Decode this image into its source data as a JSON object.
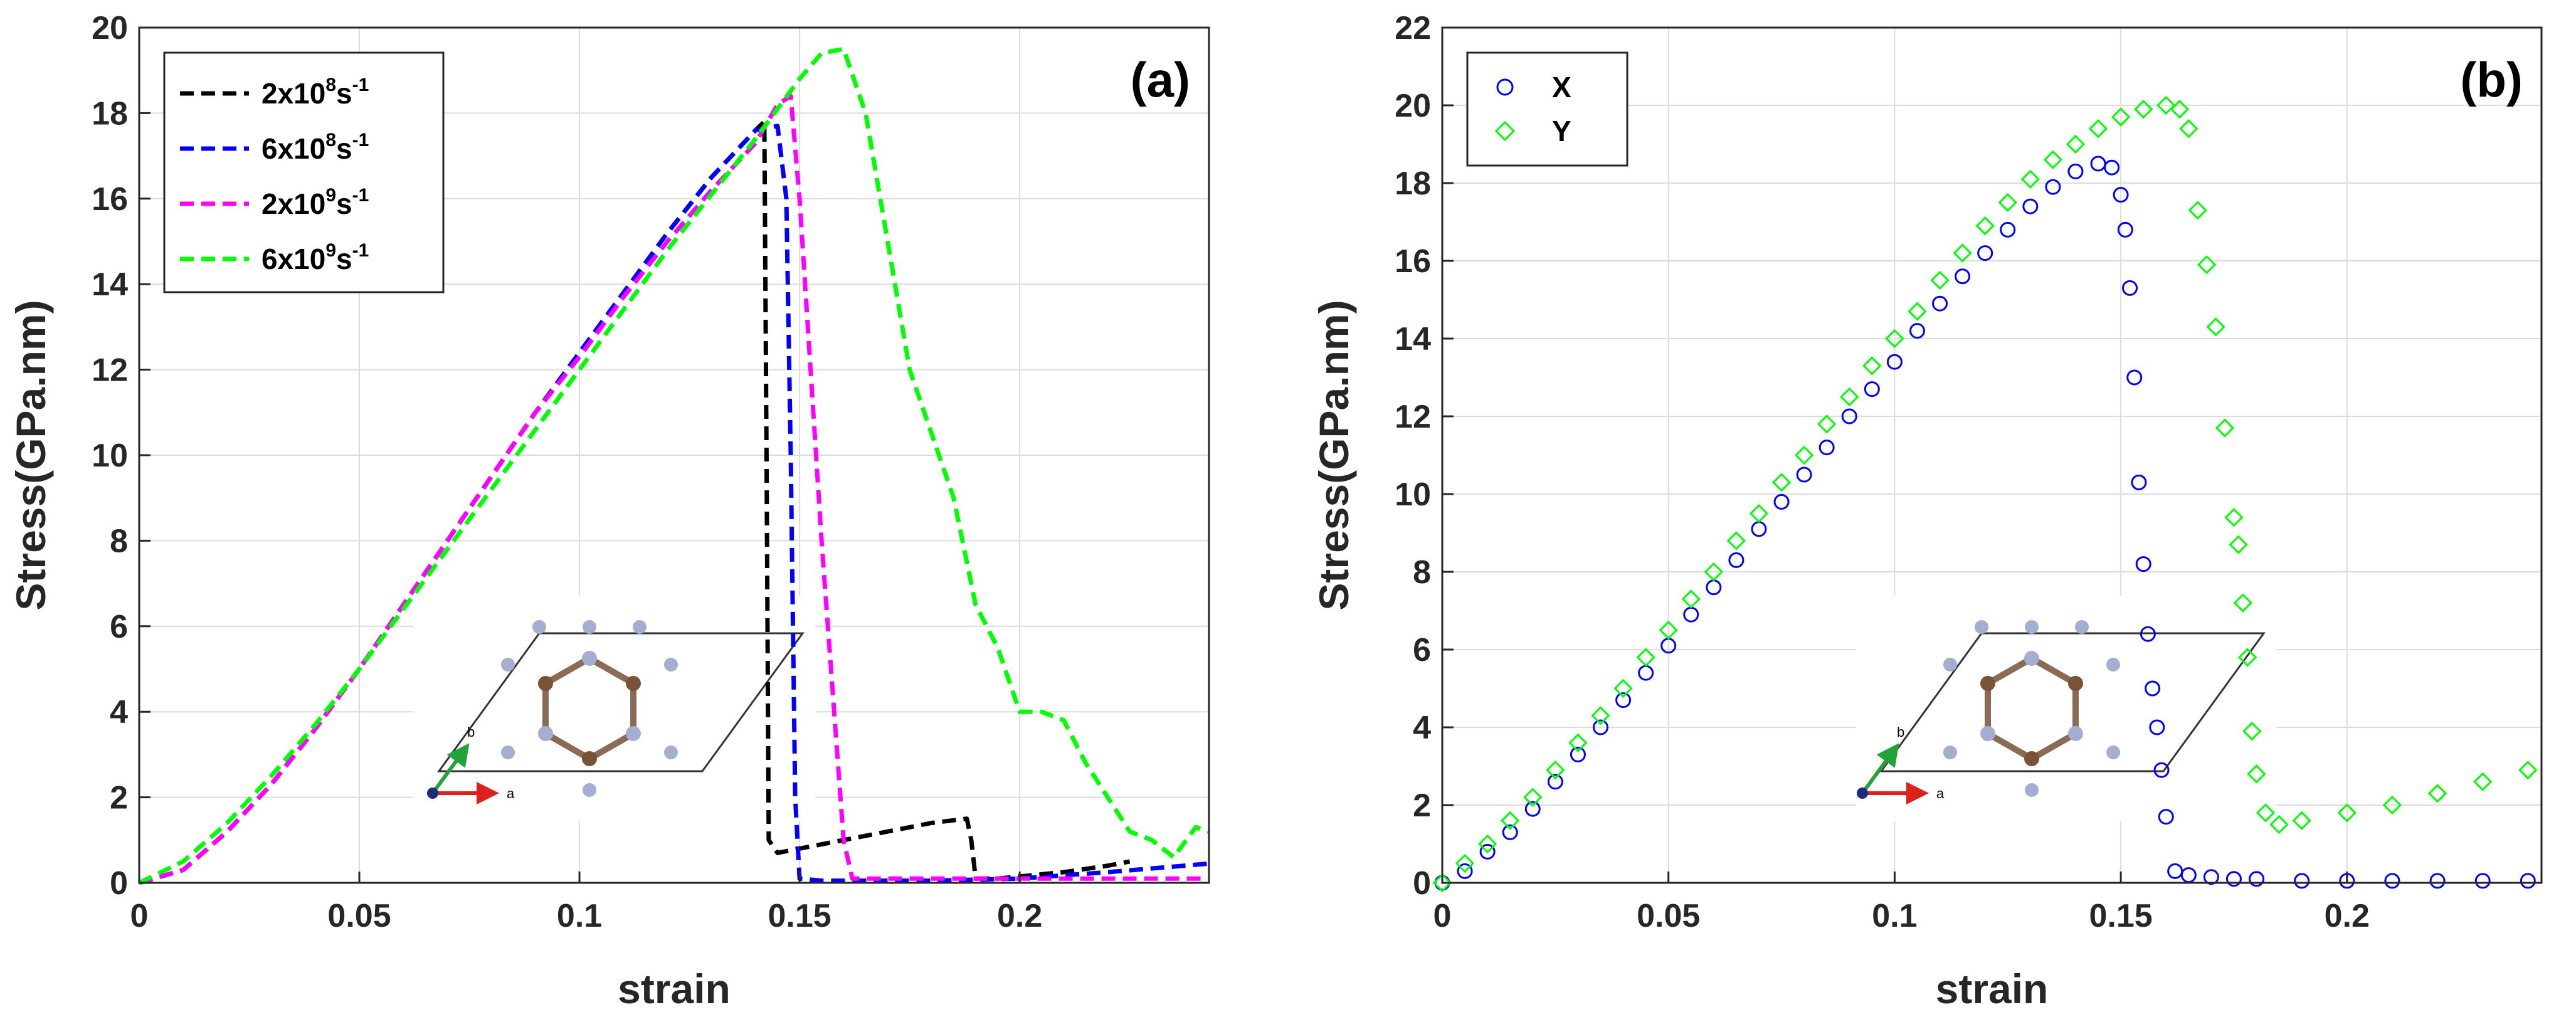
{
  "chart_data": [
    {
      "panel_label": "(a)",
      "type": "line",
      "xlabel": "strain",
      "ylabel": "Stress(GPa.nm)",
      "xlim": [
        0,
        0.243
      ],
      "ylim": [
        0,
        20
      ],
      "xticks": [
        0,
        0.05,
        0.1,
        0.15,
        0.2
      ],
      "xtick_labels": [
        "0",
        "0.05",
        "0.1",
        "0.15",
        "0.2"
      ],
      "yticks": [
        0,
        2,
        4,
        6,
        8,
        10,
        12,
        14,
        16,
        18,
        20
      ],
      "ytick_labels": [
        "0",
        "2",
        "4",
        "6",
        "8",
        "10",
        "12",
        "14",
        "16",
        "18",
        "20"
      ],
      "grid": true,
      "legend_position": "top-left",
      "series": [
        {
          "name": "2x10^8 s^-1",
          "legend": {
            "base": "2x10",
            "exp": "8",
            "unit": "s",
            "unit_exp": "-1"
          },
          "color": "#000000",
          "x": [
            0,
            0.01,
            0.02,
            0.03,
            0.04,
            0.05,
            0.06,
            0.07,
            0.08,
            0.09,
            0.1,
            0.11,
            0.12,
            0.13,
            0.14,
            0.142,
            0.1425,
            0.143,
            0.145,
            0.15,
            0.16,
            0.17,
            0.18,
            0.188,
            0.189,
            0.19,
            0.195,
            0.2,
            0.21,
            0.22,
            0.225
          ],
          "y": [
            0,
            0.3,
            1.2,
            2.3,
            3.6,
            5.0,
            6.5,
            8.0,
            9.5,
            11.0,
            12.4,
            13.8,
            15.2,
            16.5,
            17.6,
            17.8,
            10.0,
            1.0,
            0.7,
            0.8,
            1.0,
            1.2,
            1.4,
            1.5,
            1.0,
            0.1,
            0.1,
            0.15,
            0.25,
            0.4,
            0.5
          ]
        },
        {
          "name": "6x10^8 s^-1",
          "legend": {
            "base": "6x10",
            "exp": "8",
            "unit": "s",
            "unit_exp": "-1"
          },
          "color": "#0000ff",
          "x": [
            0,
            0.01,
            0.02,
            0.03,
            0.04,
            0.05,
            0.06,
            0.07,
            0.08,
            0.09,
            0.1,
            0.11,
            0.12,
            0.13,
            0.14,
            0.145,
            0.147,
            0.148,
            0.149,
            0.15,
            0.155,
            0.16,
            0.18,
            0.2,
            0.22,
            0.243
          ],
          "y": [
            0,
            0.3,
            1.2,
            2.3,
            3.6,
            5.0,
            6.5,
            8.0,
            9.5,
            11.0,
            12.4,
            13.8,
            15.2,
            16.5,
            17.6,
            17.7,
            16.0,
            10.0,
            2.0,
            0.1,
            0.05,
            0.05,
            0.05,
            0.1,
            0.25,
            0.45
          ]
        },
        {
          "name": "2x10^9 s^-1",
          "legend": {
            "base": "2x10",
            "exp": "9",
            "unit": "s",
            "unit_exp": "-1"
          },
          "color": "#ff00ff",
          "x": [
            0,
            0.01,
            0.02,
            0.03,
            0.04,
            0.05,
            0.06,
            0.07,
            0.08,
            0.09,
            0.1,
            0.11,
            0.12,
            0.13,
            0.14,
            0.145,
            0.148,
            0.15,
            0.155,
            0.16,
            0.162,
            0.17,
            0.18,
            0.2,
            0.22,
            0.243
          ],
          "y": [
            0,
            0.3,
            1.2,
            2.3,
            3.6,
            5.0,
            6.5,
            8.0,
            9.5,
            11.0,
            12.3,
            13.7,
            15.0,
            16.2,
            17.3,
            18.2,
            18.4,
            16.0,
            8.0,
            1.0,
            0.1,
            0.1,
            0.1,
            0.1,
            0.1,
            0.1
          ]
        },
        {
          "name": "6x10^9 s^-1",
          "legend": {
            "base": "6x10",
            "exp": "9",
            "unit": "s",
            "unit_exp": "-1"
          },
          "color": "#00ff00",
          "x": [
            0,
            0.01,
            0.02,
            0.03,
            0.04,
            0.05,
            0.06,
            0.07,
            0.08,
            0.09,
            0.1,
            0.11,
            0.12,
            0.13,
            0.14,
            0.15,
            0.155,
            0.16,
            0.165,
            0.17,
            0.175,
            0.18,
            0.185,
            0.19,
            0.195,
            0.2,
            0.205,
            0.21,
            0.215,
            0.22,
            0.225,
            0.23,
            0.235,
            0.24,
            0.243
          ],
          "y": [
            0,
            0.5,
            1.4,
            2.5,
            3.7,
            5.0,
            6.4,
            7.8,
            9.2,
            10.6,
            12.0,
            13.4,
            14.8,
            16.1,
            17.4,
            18.8,
            19.4,
            19.5,
            18.0,
            15.0,
            12.0,
            10.5,
            9.0,
            6.5,
            5.5,
            4.0,
            4.0,
            3.8,
            2.8,
            2.0,
            1.2,
            1.0,
            0.6,
            1.3,
            1.2
          ]
        }
      ]
    },
    {
      "panel_label": "(b)",
      "type": "scatter",
      "xlabel": "strain",
      "ylabel": "Stress(GPa.nm)",
      "xlim": [
        0,
        0.243
      ],
      "ylim": [
        0,
        22
      ],
      "xticks": [
        0,
        0.05,
        0.1,
        0.15,
        0.2
      ],
      "xtick_labels": [
        "0",
        "0.05",
        "0.1",
        "0.15",
        "0.2"
      ],
      "yticks": [
        0,
        2,
        4,
        6,
        8,
        10,
        12,
        14,
        16,
        18,
        20,
        22
      ],
      "ytick_labels": [
        "0",
        "2",
        "4",
        "6",
        "8",
        "10",
        "12",
        "14",
        "16",
        "18",
        "20",
        "22"
      ],
      "grid": true,
      "legend_position": "top-left",
      "series": [
        {
          "name": "X",
          "marker": "circle",
          "color": "#0000ff",
          "x": [
            0,
            0.005,
            0.01,
            0.015,
            0.02,
            0.025,
            0.03,
            0.035,
            0.04,
            0.045,
            0.05,
            0.055,
            0.06,
            0.065,
            0.07,
            0.075,
            0.08,
            0.085,
            0.09,
            0.095,
            0.1,
            0.105,
            0.11,
            0.115,
            0.12,
            0.125,
            0.13,
            0.135,
            0.14,
            0.145,
            0.148,
            0.15,
            0.151,
            0.152,
            0.153,
            0.154,
            0.155,
            0.156,
            0.157,
            0.158,
            0.159,
            0.16,
            0.162,
            0.165,
            0.17,
            0.175,
            0.18,
            0.19,
            0.2,
            0.21,
            0.22,
            0.23,
            0.24
          ],
          "y": [
            0,
            0.3,
            0.8,
            1.3,
            1.9,
            2.6,
            3.3,
            4.0,
            4.7,
            5.4,
            6.1,
            6.9,
            7.6,
            8.3,
            9.1,
            9.8,
            10.5,
            11.2,
            12.0,
            12.7,
            13.4,
            14.2,
            14.9,
            15.6,
            16.2,
            16.8,
            17.4,
            17.9,
            18.3,
            18.5,
            18.4,
            17.7,
            16.8,
            15.3,
            13.0,
            10.3,
            8.2,
            6.4,
            5.0,
            4.0,
            2.9,
            1.7,
            0.3,
            0.2,
            0.15,
            0.1,
            0.1,
            0.05,
            0.05,
            0.05,
            0.05,
            0.05,
            0.05
          ]
        },
        {
          "name": "Y",
          "marker": "diamond",
          "color": "#00ff00",
          "x": [
            0,
            0.005,
            0.01,
            0.015,
            0.02,
            0.025,
            0.03,
            0.035,
            0.04,
            0.045,
            0.05,
            0.055,
            0.06,
            0.065,
            0.07,
            0.075,
            0.08,
            0.085,
            0.09,
            0.095,
            0.1,
            0.105,
            0.11,
            0.115,
            0.12,
            0.125,
            0.13,
            0.135,
            0.14,
            0.145,
            0.15,
            0.155,
            0.16,
            0.163,
            0.165,
            0.167,
            0.169,
            0.171,
            0.173,
            0.175,
            0.176,
            0.177,
            0.178,
            0.179,
            0.18,
            0.182,
            0.185,
            0.19,
            0.2,
            0.21,
            0.22,
            0.23,
            0.24
          ],
          "y": [
            0,
            0.5,
            1.0,
            1.6,
            2.2,
            2.9,
            3.6,
            4.3,
            5.0,
            5.8,
            6.5,
            7.3,
            8.0,
            8.8,
            9.5,
            10.3,
            11.0,
            11.8,
            12.5,
            13.3,
            14.0,
            14.7,
            15.5,
            16.2,
            16.9,
            17.5,
            18.1,
            18.6,
            19.0,
            19.4,
            19.7,
            19.9,
            20.0,
            19.9,
            19.4,
            17.3,
            15.9,
            14.3,
            11.7,
            9.4,
            8.7,
            7.2,
            5.8,
            3.9,
            2.8,
            1.8,
            1.5,
            1.6,
            1.8,
            2.0,
            2.3,
            2.6,
            2.9
          ]
        }
      ]
    }
  ],
  "inset": {
    "axis_a_label": "a",
    "axis_b_label": "b"
  }
}
